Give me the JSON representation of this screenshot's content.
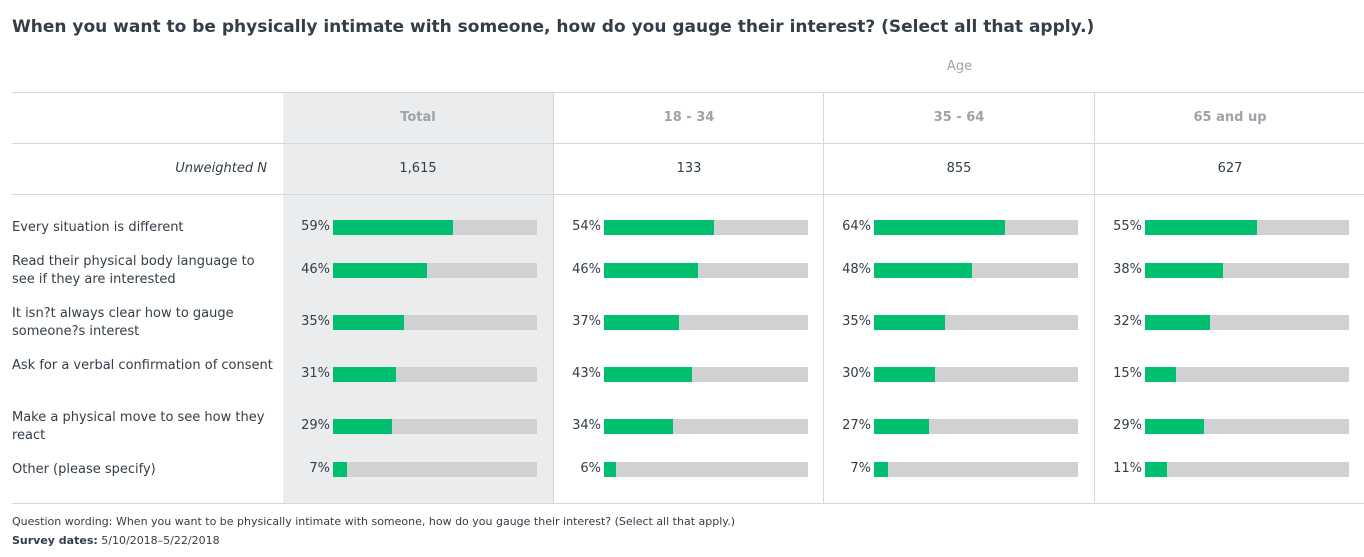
{
  "title": "When you want to be physically intimate with someone, how do you gauge their interest? (Select all that apply.)",
  "group_label": "Age",
  "unweighted_label": "Unweighted N",
  "colors": {
    "bar_fill": "#00bf6f",
    "bar_track": "#d0d1d3",
    "total_bg": "#ebeced"
  },
  "chart_data": {
    "type": "bar",
    "categories": [
      "Every situation is different",
      "Read their physical body language to see if they are interested",
      "It isn?t always clear how to gauge someone?s interest",
      "Ask for a verbal confirmation of consent",
      "Make a physical move to see how they react",
      "Other (please specify)"
    ],
    "series": [
      {
        "name": "Total",
        "n": "1,615",
        "values": [
          59,
          46,
          35,
          31,
          29,
          7
        ],
        "labels": [
          "59%",
          "46%",
          "35%",
          "31%",
          "29%",
          "7%"
        ]
      },
      {
        "name": "18 - 34",
        "n": "133",
        "values": [
          54,
          46,
          37,
          43,
          34,
          6
        ],
        "labels": [
          "54%",
          "46%",
          "37%",
          "43%",
          "34%",
          "6%"
        ]
      },
      {
        "name": "35 - 64",
        "n": "855",
        "values": [
          64,
          48,
          35,
          30,
          27,
          7
        ],
        "labels": [
          "64%",
          "48%",
          "35%",
          "30%",
          "27%",
          "7%"
        ]
      },
      {
        "name": "65 and up",
        "n": "627",
        "values": [
          55,
          38,
          32,
          15,
          29,
          11
        ],
        "labels": [
          "55%",
          "38%",
          "32%",
          "15%",
          "29%",
          "11%"
        ]
      }
    ],
    "xlim": [
      0,
      100
    ]
  },
  "footer": {
    "wording_label": "Question wording:",
    "wording_text": "When you want to be physically intimate with someone, how do you gauge their interest? (Select all that apply.)",
    "dates_label": "Survey dates:",
    "dates_text": "5/10/2018–5/22/2018"
  }
}
